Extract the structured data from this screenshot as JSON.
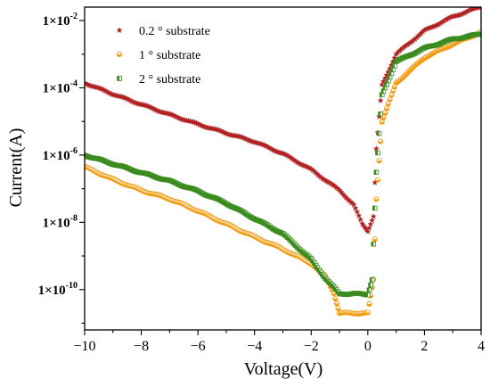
{
  "chart_data": {
    "type": "scatter",
    "title": "",
    "xlabel": "Voltage(V)",
    "ylabel": "Current(A)",
    "xlim": [
      -10,
      4
    ],
    "ylim_log10": [
      -11.2,
      -1.6
    ],
    "y_scale": "log",
    "grid": false,
    "legend_position": "top-left",
    "x_ticks": [
      -10,
      -8,
      -6,
      -4,
      -2,
      0,
      2,
      4
    ],
    "x_tick_labels": [
      "−10",
      "−8",
      "−6",
      "−4",
      "−2",
      "0",
      "2",
      "4"
    ],
    "y_ticks": [
      {
        "exp": -2,
        "base": "1×10",
        "sup": "-2"
      },
      {
        "exp": -4,
        "base": "1×10",
        "sup": "-4"
      },
      {
        "exp": -6,
        "base": "1×10",
        "sup": "-6"
      },
      {
        "exp": -8,
        "base": "1×10",
        "sup": "-8"
      },
      {
        "exp": -10,
        "base": "1×10",
        "sup": "-10"
      }
    ],
    "series": [
      {
        "name": "0.2 ° substrate",
        "marker": "star",
        "color": "#b22222",
        "points": [
          [
            -10,
            0.00014
          ],
          [
            -9,
            6.5e-05
          ],
          [
            -8,
            3.2e-05
          ],
          [
            -7,
            1.6e-05
          ],
          [
            -6,
            8.3e-06
          ],
          [
            -5,
            4.5e-06
          ],
          [
            -4,
            2.5e-06
          ],
          [
            -3,
            1.1e-06
          ],
          [
            -2,
            3.7e-07
          ],
          [
            -1.5,
            1.8e-07
          ],
          [
            -1,
            9e-08
          ],
          [
            -0.5,
            3.3e-08
          ],
          [
            -0.2,
            9e-09
          ],
          [
            0,
            5.5e-09
          ],
          [
            0.2,
            1.5e-08
          ],
          [
            0.3,
            1.5e-06
          ],
          [
            0.5,
            0.00012
          ],
          [
            1,
            0.001
          ],
          [
            2,
            0.005
          ],
          [
            3,
            0.013
          ],
          [
            4,
            0.026
          ]
        ]
      },
      {
        "name": "1 ° substrate",
        "marker": "circle",
        "color": "#f39c12",
        "points": [
          [
            -10,
            4.5e-07
          ],
          [
            -9,
            1.9e-07
          ],
          [
            -8,
            9e-08
          ],
          [
            -7,
            5e-08
          ],
          [
            -6,
            2.2e-08
          ],
          [
            -5,
            9e-09
          ],
          [
            -4,
            3.7e-09
          ],
          [
            -3,
            1.6e-09
          ],
          [
            -2,
            6e-10
          ],
          [
            -1.5,
            2.5e-10
          ],
          [
            -1.2,
            8e-11
          ],
          [
            -1,
            2e-11
          ],
          [
            0,
            2e-11
          ],
          [
            0.2,
            2e-10
          ],
          [
            0.3,
            5e-08
          ],
          [
            0.5,
            1e-05
          ],
          [
            1,
            0.00014
          ],
          [
            2,
            0.0008
          ],
          [
            3,
            0.002
          ],
          [
            4,
            0.0045
          ]
        ]
      },
      {
        "name": "2 ° substrate",
        "marker": "half-square",
        "color": "#3a8c1f",
        "points": [
          [
            -10,
            1e-06
          ],
          [
            -9,
            5.5e-07
          ],
          [
            -8,
            3e-07
          ],
          [
            -7,
            1.7e-07
          ],
          [
            -6,
            8.5e-08
          ],
          [
            -5,
            3.7e-08
          ],
          [
            -4,
            1.3e-08
          ],
          [
            -3,
            4.6e-09
          ],
          [
            -2,
            8e-10
          ],
          [
            -1.5,
            2.2e-10
          ],
          [
            -1,
            7.5e-11
          ],
          [
            -0.5,
            7.5e-11
          ],
          [
            0,
            7.2e-11
          ],
          [
            0.15,
            2e-10
          ],
          [
            0.3,
            3e-07
          ],
          [
            0.5,
            6e-05
          ],
          [
            1,
            0.0006
          ],
          [
            2,
            0.0015
          ],
          [
            3,
            0.0028
          ],
          [
            4,
            0.004
          ]
        ]
      }
    ]
  }
}
